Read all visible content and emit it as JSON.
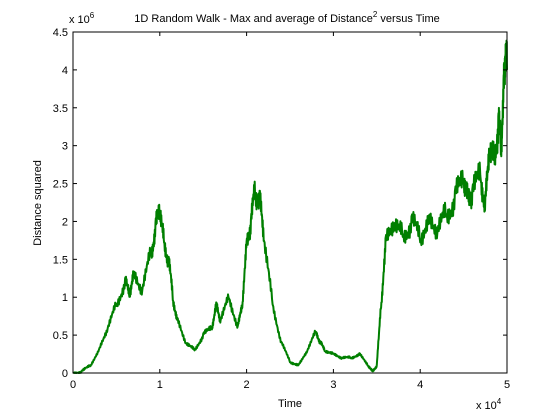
{
  "chart_data": {
    "type": "line",
    "title_main": "1D Random Walk - Max and average of Distance",
    "title_superscript": "2",
    "title_tail": " versus Time",
    "xlabel": "Time",
    "ylabel": "Distance squared",
    "x_multiplier": {
      "base": "x 10",
      "exponent": "4"
    },
    "y_multiplier": {
      "base": "x 10",
      "exponent": "6"
    },
    "xlim": [
      0,
      5
    ],
    "ylim": [
      0,
      4.5
    ],
    "x_ticks": [
      "0",
      "1",
      "2",
      "3",
      "4",
      "5"
    ],
    "y_ticks": [
      "0",
      "0.5",
      "1",
      "1.5",
      "2",
      "2.5",
      "3",
      "3.5",
      "4",
      "4.5"
    ],
    "grid": false,
    "series": [
      {
        "color": "#007f00",
        "x": [
          0,
          0.1,
          0.2,
          0.3,
          0.4,
          0.5,
          0.6,
          0.65,
          0.7,
          0.8,
          0.9,
          0.95,
          1.0,
          1.05,
          1.1,
          1.15,
          1.2,
          1.3,
          1.4,
          1.5,
          1.6,
          1.65,
          1.7,
          1.8,
          1.9,
          1.95,
          2.0,
          2.05,
          2.1,
          2.15,
          2.2,
          2.3,
          2.4,
          2.5,
          2.6,
          2.7,
          2.8,
          2.85,
          2.9,
          3.0,
          3.1,
          3.2,
          3.3,
          3.4,
          3.45,
          3.5,
          3.55,
          3.6,
          3.7,
          3.8,
          3.9,
          4.0,
          4.1,
          4.2,
          4.3,
          4.4,
          4.5,
          4.55,
          4.6,
          4.7,
          4.75,
          4.8,
          4.85,
          4.9,
          4.93,
          4.96,
          4.98,
          5.0
        ],
        "y": [
          0.0,
          0.02,
          0.1,
          0.3,
          0.6,
          0.9,
          1.2,
          1.05,
          1.3,
          1.1,
          1.6,
          1.9,
          2.2,
          1.7,
          1.5,
          1.0,
          0.7,
          0.4,
          0.3,
          0.5,
          0.6,
          0.9,
          0.7,
          1.0,
          0.6,
          0.9,
          1.7,
          2.0,
          2.4,
          2.3,
          1.8,
          0.9,
          0.4,
          0.15,
          0.1,
          0.3,
          0.55,
          0.4,
          0.3,
          0.25,
          0.2,
          0.2,
          0.25,
          0.1,
          0.02,
          0.1,
          0.9,
          1.7,
          2.0,
          1.8,
          2.0,
          1.8,
          2.0,
          1.9,
          2.1,
          2.3,
          2.6,
          2.3,
          2.4,
          2.6,
          2.2,
          3.0,
          2.8,
          3.3,
          3.0,
          3.7,
          4.2,
          4.0
        ]
      }
    ]
  }
}
